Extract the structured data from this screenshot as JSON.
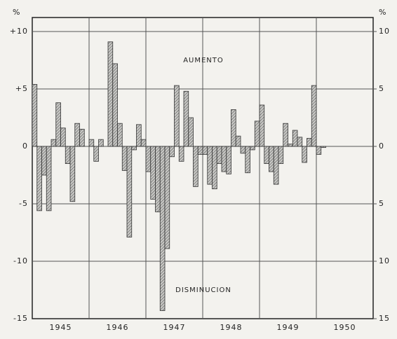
{
  "chart_data": {
    "type": "bar",
    "y_unit": "%",
    "annotations": [
      "AUMENTO",
      "DISMINUCION"
    ],
    "year_labels": [
      "1945",
      "1946",
      "1947",
      "1948",
      "1949",
      "1950"
    ],
    "categories": [
      null,
      null,
      null,
      null,
      null,
      null,
      null,
      null,
      null,
      null,
      null,
      null,
      null,
      null,
      null,
      null,
      null,
      null,
      null,
      null,
      null,
      null,
      null,
      null,
      null,
      null,
      null,
      null,
      null,
      null,
      null,
      null,
      null,
      null,
      null,
      null,
      null,
      null,
      null,
      null,
      null,
      null,
      null,
      null,
      null,
      null,
      null,
      null,
      null,
      null,
      null,
      null,
      null,
      null,
      null,
      null,
      null,
      null,
      null,
      null,
      null,
      null
    ],
    "values": [
      5.4,
      -5.6,
      -2.5,
      -5.6,
      0.6,
      3.8,
      1.6,
      -1.5,
      -4.8,
      2.0,
      1.5,
      0,
      0.6,
      -1.3,
      0.6,
      0,
      9.1,
      7.2,
      2.0,
      -2.1,
      -7.9,
      -0.3,
      1.9,
      0.6,
      -2.2,
      -4.6,
      -5.7,
      -14.3,
      -8.9,
      -0.9,
      5.3,
      -1.3,
      4.8,
      2.5,
      -3.5,
      -0.7,
      -0.7,
      -3.3,
      -3.7,
      -1.5,
      -2.2,
      -2.4,
      3.2,
      0.9,
      -0.6,
      -2.3,
      -0.3,
      2.2,
      3.6,
      -1.5,
      -2.2,
      -3.3,
      -1.5,
      2.0,
      0.2,
      1.4,
      0.8,
      -1.4,
      0.7,
      5.3,
      -0.7,
      -0.1
    ],
    "color": "#8a8a8a",
    "ylim": [
      -15,
      10
    ],
    "yticks": [
      {
        "value": 10,
        "label": "+10"
      },
      {
        "value": 5,
        "label": "+5"
      },
      0,
      -5,
      -10,
      -15
    ],
    "y2lim": [
      -15,
      10
    ],
    "y2ticks": [
      10,
      5,
      0,
      {
        "value": -5,
        "label": "5"
      },
      {
        "value": -10,
        "label": "10"
      },
      {
        "value": -15,
        "label": "15"
      }
    ],
    "grid": true
  }
}
